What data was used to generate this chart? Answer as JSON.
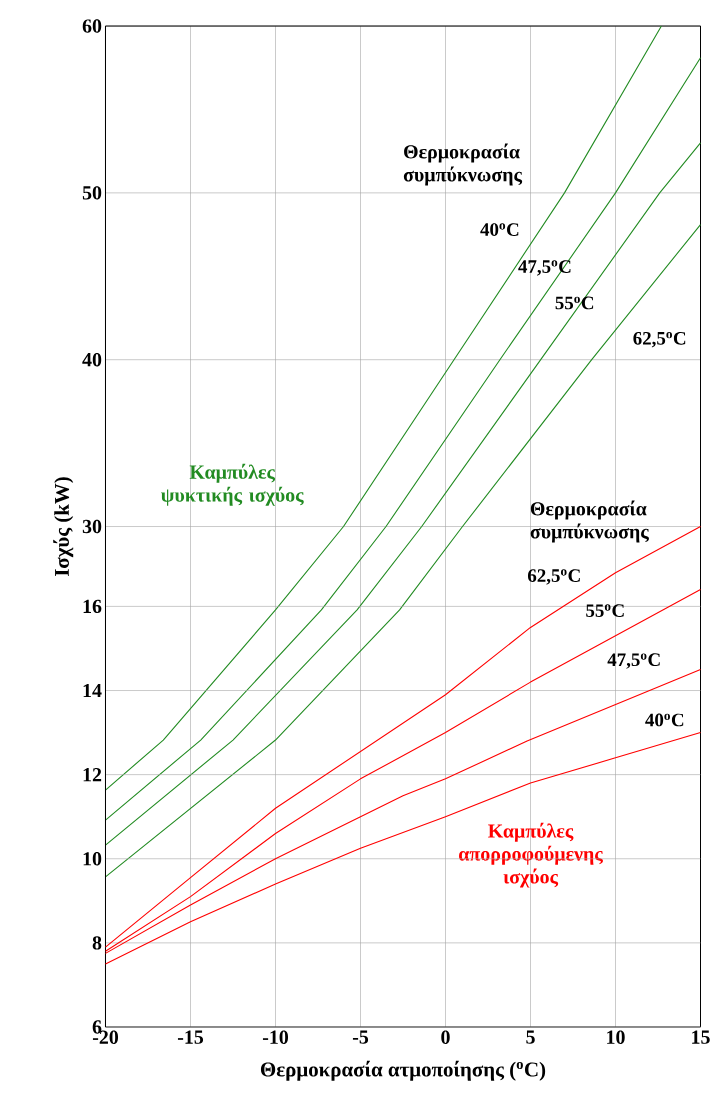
{
  "chart_data": {
    "type": "line",
    "xlabel": "Θερμοκρασία ατμοποίησης ($^{o}$C)",
    "ylabel": "Ισχύς (kW)",
    "xlim": [
      -20,
      15
    ],
    "xticks": [
      -20,
      -15,
      -10,
      -5,
      0,
      5,
      10,
      15
    ],
    "ylim": [
      0,
      60
    ],
    "yticks": [
      30,
      40,
      50,
      60
    ],
    "y2lim": [
      6,
      29.8
    ],
    "y2ticks": [
      6,
      8,
      10,
      12,
      14,
      16
    ],
    "grid": true,
    "series": [
      {
        "name": "40$^{o}$C",
        "color": "#228b22",
        "x": [
          -20,
          -16.6,
          -10,
          -6,
          0.5,
          7.0,
          12.7
        ],
        "values": [
          14.2,
          17.2,
          25.0,
          30,
          40,
          50,
          60
        ]
      },
      {
        "name": "47,5$^{o}$C",
        "color": "#228b22",
        "x": [
          -20,
          -14.4,
          -7.3,
          -3.5,
          3.2,
          10,
          15
        ],
        "values": [
          12.4,
          17.2,
          25.0,
          30,
          40,
          50,
          58.1
        ]
      },
      {
        "name": "55$^{o}$C",
        "color": "#228b22",
        "x": [
          -20,
          -12.5,
          -5.2,
          -1.4,
          5.6,
          12.6,
          15
        ],
        "values": [
          10.9,
          17.2,
          25.0,
          30,
          40,
          50,
          53.0
        ]
      },
      {
        "name": "62,5$^{o}$C",
        "color": "#228b22",
        "x": [
          -20,
          -10,
          -2.7,
          1.0,
          8.6,
          15
        ],
        "values": [
          9.0,
          17.2,
          25.0,
          30,
          40,
          48.1
        ]
      },
      {
        "name": "62,5$^{o}$C",
        "color": "#ff0000",
        "axis": "y2",
        "x": [
          -20,
          -15,
          -10,
          0,
          5,
          10,
          15
        ],
        "values": [
          7.9,
          9.55,
          11.2,
          13.9,
          15.5,
          16.8,
          17.9
        ]
      },
      {
        "name": "55$^{o}$C",
        "color": "#ff0000",
        "axis": "y2",
        "x": [
          -20,
          -15,
          -10,
          -5,
          0,
          5,
          15
        ],
        "values": [
          7.8,
          9.1,
          10.6,
          11.9,
          13.0,
          14.2,
          16.4
        ]
      },
      {
        "name": "47,5$^{o}$C",
        "color": "#ff0000",
        "axis": "y2",
        "x": [
          -20,
          -15,
          -10,
          -5,
          -2.5,
          0,
          4.8,
          15
        ],
        "values": [
          7.75,
          8.9,
          10.0,
          11.0,
          11.5,
          11.9,
          12.8,
          14.5
        ]
      },
      {
        "name": "40$^{o}$C",
        "color": "#ff0000",
        "axis": "y2",
        "x": [
          -20,
          -15,
          -10,
          -5,
          0,
          5,
          10,
          15
        ],
        "values": [
          7.5,
          8.5,
          9.4,
          10.25,
          11.0,
          11.8,
          12.4,
          13.0
        ]
      }
    ],
    "annotations": [
      "Θερμοκρασία συμπύκνωσης",
      "Καμπύλες ψυκτικής ισχύος",
      "Θερμοκρασία συμπύκνωσης",
      "Καμπύλες απορροφούμενης ισχύος"
    ]
  }
}
